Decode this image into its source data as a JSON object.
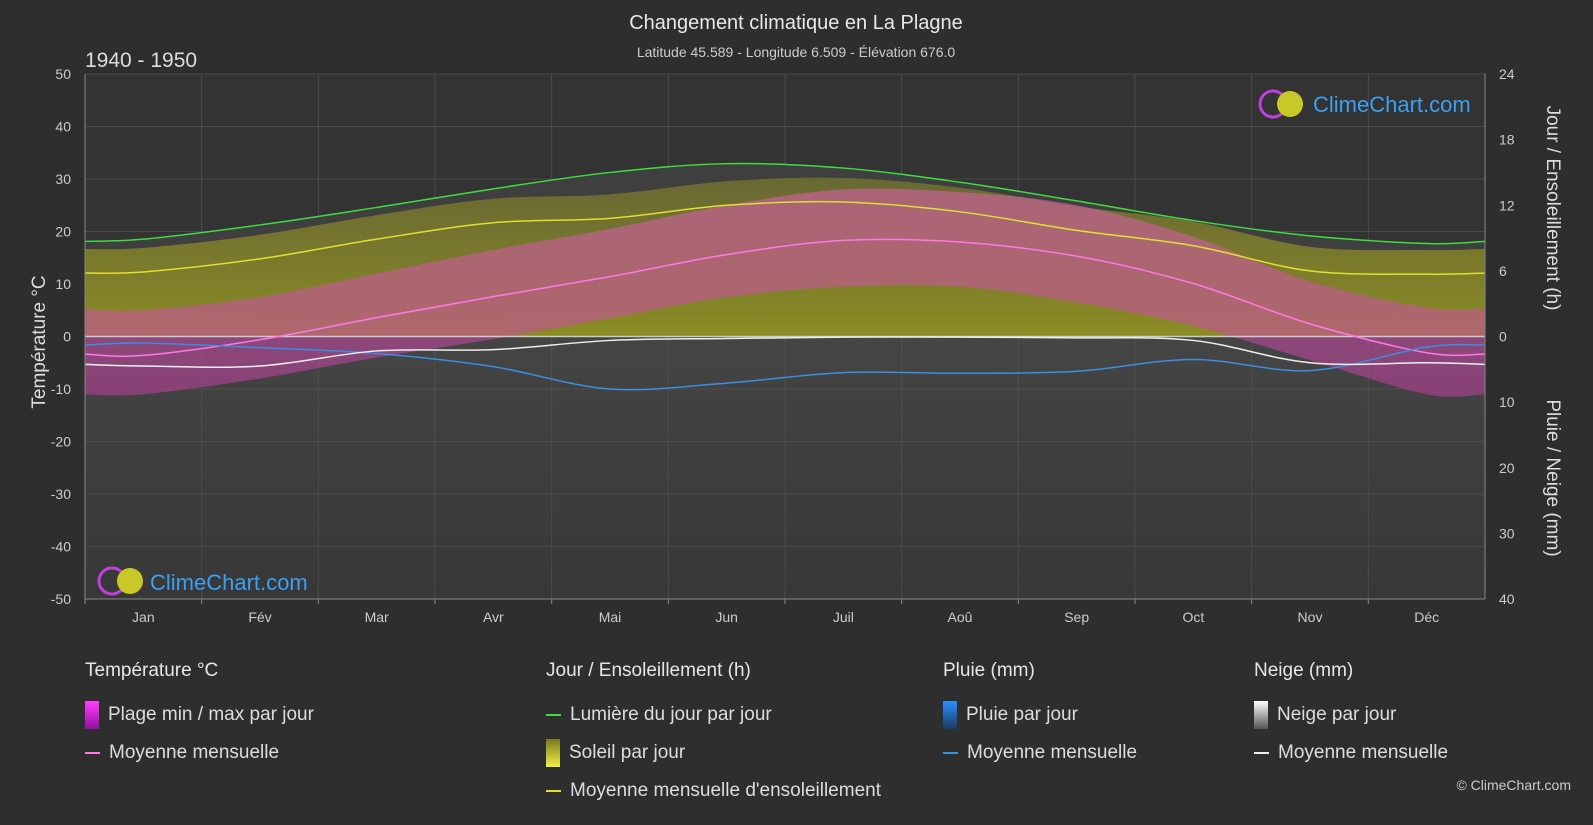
{
  "chart_data": {
    "type": "area",
    "title": "Changement climatique en La Plagne",
    "subtitle": "Latitude 45.589 - Longitude 6.509 - Élévation 676.0",
    "period": "1940 - 1950",
    "ylabel_left": "Température °C",
    "ylabel_right_top": "Jour / Ensoleillement (h)",
    "ylabel_right_bottom": "Pluie / Neige (mm)",
    "y_left_ticks": [
      "50",
      "40",
      "30",
      "20",
      "10",
      "0",
      "-10",
      "-20",
      "-30",
      "-40",
      "-50"
    ],
    "y_right_top_ticks": [
      "24",
      "18",
      "12",
      "6",
      "0"
    ],
    "y_right_bottom_ticks": [
      "0",
      "10",
      "20",
      "30",
      "40"
    ],
    "ylim_left": [
      -50,
      50
    ],
    "ylim_right_top": [
      0,
      24
    ],
    "ylim_right_bottom": [
      0,
      40
    ],
    "categories": [
      "Jan",
      "Fév",
      "Mar",
      "Avr",
      "Mai",
      "Jun",
      "Juil",
      "Aoû",
      "Sep",
      "Oct",
      "Nov",
      "Déc"
    ],
    "series": [
      {
        "name": "Lumière du jour par jour",
        "unit": "h",
        "values": [
          8.9,
          10.2,
          11.8,
          13.5,
          15.0,
          15.8,
          15.4,
          14.1,
          12.4,
          10.6,
          9.2,
          8.5
        ],
        "color": "#3fdc3f"
      },
      {
        "name": "Moyenne mensuelle d'ensoleillement",
        "unit": "h",
        "values": [
          5.9,
          7.1,
          8.9,
          10.4,
          10.8,
          12.0,
          12.3,
          11.4,
          9.7,
          8.3,
          6.0,
          5.7
        ],
        "color": "#e0e030"
      },
      {
        "name": "Moyenne mensuelle",
        "kind": "temperature",
        "unit": "°C",
        "values": [
          -3.6,
          -0.6,
          3.6,
          7.6,
          11.4,
          15.6,
          18.3,
          18.0,
          15.3,
          10.1,
          2.4,
          -3.1
        ],
        "color": "#ff78e6"
      },
      {
        "name": "Moyenne mensuelle",
        "kind": "rain",
        "unit": "mm",
        "values": [
          1.0,
          1.7,
          2.6,
          4.6,
          8.0,
          7.1,
          5.5,
          5.6,
          5.3,
          3.5,
          5.2,
          1.6
        ],
        "color": "#3a8fe0"
      },
      {
        "name": "Moyenne mensuelle",
        "kind": "snow",
        "unit": "mm",
        "values": [
          4.5,
          4.5,
          2.2,
          2.0,
          0.6,
          0.3,
          0.1,
          0.1,
          0.2,
          0.6,
          4.0,
          4.0
        ],
        "color": "#eeeeee"
      }
    ],
    "temp_band": {
      "max": [
        1.0,
        3.5,
        8.0,
        12.5,
        16.5,
        21.0,
        24.0,
        23.5,
        21.0,
        15.0,
        6.5,
        1.5
      ],
      "min": [
        -8.0,
        -5.0,
        -1.0,
        2.5,
        6.5,
        10.5,
        12.5,
        12.5,
        9.5,
        5.0,
        -1.5,
        -8.0
      ]
    },
    "grid": true,
    "watermark": "ClimeChart.com",
    "copyright": "© ClimeChart.com"
  },
  "legend": {
    "groups": [
      {
        "title": "Température °C",
        "items": [
          {
            "label": "Plage min / max par jour",
            "type": "box",
            "color": "#e020d0"
          },
          {
            "label": "Moyenne mensuelle",
            "type": "line",
            "color": "#ff78e6"
          }
        ]
      },
      {
        "title": "Jour / Ensoleillement (h)",
        "items": [
          {
            "label": "Lumière du jour par jour",
            "type": "line",
            "color": "#3fdc3f"
          },
          {
            "label": "Soleil par jour",
            "type": "box",
            "color": "#d8d832"
          },
          {
            "label": "Moyenne mensuelle d'ensoleillement",
            "type": "line",
            "color": "#e0e030"
          }
        ]
      },
      {
        "title": "Pluie (mm)",
        "items": [
          {
            "label": "Pluie par jour",
            "type": "box",
            "color": "#2a7fd8"
          },
          {
            "label": "Moyenne mensuelle",
            "type": "line",
            "color": "#3a8fe0"
          }
        ]
      },
      {
        "title": "Neige (mm)",
        "items": [
          {
            "label": "Neige par jour",
            "type": "box",
            "color": "#d8d8d8"
          },
          {
            "label": "Moyenne mensuelle",
            "type": "line",
            "color": "#eeeeee"
          }
        ]
      }
    ]
  }
}
